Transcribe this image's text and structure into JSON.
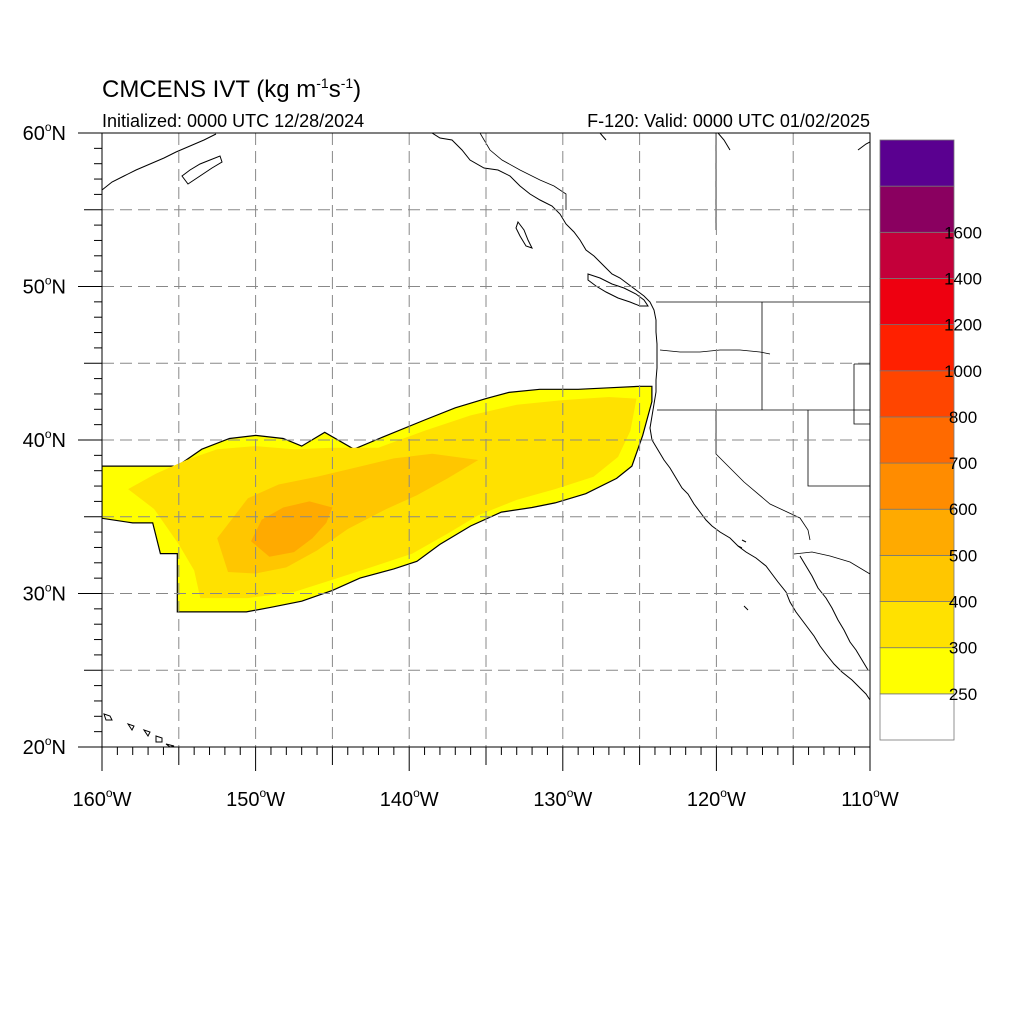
{
  "title": {
    "prefix": "CMCENS IVT (kg m",
    "exp1": "-1",
    "mid": "s",
    "exp2": "-1",
    "suffix": ")"
  },
  "subtitle_left": "Initialized: 0000 UTC 12/28/2024",
  "subtitle_right": "F-120: Valid: 0000 UTC 01/02/2025",
  "map": {
    "lon_range": [
      -160,
      -110
    ],
    "lat_range": [
      20,
      60
    ],
    "grid_dashed": true,
    "lon_ticks": [
      {
        "value": -160,
        "label": "160",
        "hemi": "W"
      },
      {
        "value": -150,
        "label": "150",
        "hemi": "W"
      },
      {
        "value": -140,
        "label": "140",
        "hemi": "W"
      },
      {
        "value": -130,
        "label": "130",
        "hemi": "W"
      },
      {
        "value": -120,
        "label": "120",
        "hemi": "W"
      },
      {
        "value": -110,
        "label": "110",
        "hemi": "W"
      }
    ],
    "lat_ticks": [
      {
        "value": 20,
        "label": "20",
        "hemi": "N"
      },
      {
        "value": 30,
        "label": "30",
        "hemi": "N"
      },
      {
        "value": 40,
        "label": "40",
        "hemi": "N"
      },
      {
        "value": 50,
        "label": "50",
        "hemi": "N"
      },
      {
        "value": 60,
        "label": "60",
        "hemi": "N"
      }
    ],
    "degree_symbol": "o"
  },
  "colorbar": {
    "levels": [
      {
        "color": "#ffffff",
        "label": ""
      },
      {
        "color": "#ffff00",
        "label": "250"
      },
      {
        "color": "#ffe100",
        "label": "300"
      },
      {
        "color": "#ffc600",
        "label": "400"
      },
      {
        "color": "#ffaa00",
        "label": "500"
      },
      {
        "color": "#ff8c00",
        "label": "600"
      },
      {
        "color": "#ff6a00",
        "label": "700"
      },
      {
        "color": "#ff4500",
        "label": "800"
      },
      {
        "color": "#ff2000",
        "label": "1000"
      },
      {
        "color": "#ee0010",
        "label": "1200"
      },
      {
        "color": "#c4003a",
        "label": "1400"
      },
      {
        "color": "#8a0060",
        "label": "1600"
      },
      {
        "color": "#5a0090",
        "label": ""
      }
    ]
  },
  "ivt_field": {
    "units": "kg m-1 s-1",
    "regions": [
      {
        "level": 250,
        "color": "#ffff00",
        "outline": [
          [
            -160,
            38.3
          ],
          [
            -155.1,
            38.3
          ],
          [
            -153.5,
            39.4
          ],
          [
            -151.7,
            40.1
          ],
          [
            -150,
            40.3
          ],
          [
            -148.2,
            40.1
          ],
          [
            -147,
            39.6
          ],
          [
            -145.5,
            40.5
          ],
          [
            -143.6,
            39.4
          ],
          [
            -141.7,
            40.2
          ],
          [
            -139,
            41.3
          ],
          [
            -137,
            42.1
          ],
          [
            -135,
            42.7
          ],
          [
            -133.5,
            43.1
          ],
          [
            -131.5,
            43.3
          ],
          [
            -129,
            43.3
          ],
          [
            -127,
            43.4
          ],
          [
            -125,
            43.5
          ],
          [
            -124.2,
            43.5
          ],
          [
            -124.2,
            42.5
          ],
          [
            -124.8,
            40.3
          ],
          [
            -125.5,
            38.3
          ],
          [
            -126.5,
            37.5
          ],
          [
            -128.5,
            36.5
          ],
          [
            -130.5,
            35.9
          ],
          [
            -132,
            35.6
          ],
          [
            -134,
            35.3
          ],
          [
            -136,
            34.4
          ],
          [
            -138,
            33.2
          ],
          [
            -139.5,
            32.1
          ],
          [
            -141,
            31.6
          ],
          [
            -143.2,
            31.0
          ],
          [
            -145,
            30.2
          ],
          [
            -147,
            29.5
          ],
          [
            -149,
            29.1
          ],
          [
            -150.6,
            28.8
          ],
          [
            -153,
            28.8
          ],
          [
            -155.1,
            28.8
          ],
          [
            -155.1,
            30.0
          ],
          [
            -155.1,
            32.6
          ],
          [
            -156.2,
            32.6
          ],
          [
            -156.7,
            34.6
          ],
          [
            -158,
            34.6
          ],
          [
            -160,
            34.9
          ]
        ]
      },
      {
        "level": 300,
        "color": "#ffe100",
        "outline": [
          [
            -158.3,
            36.8
          ],
          [
            -156.5,
            37.8
          ],
          [
            -154.5,
            38.7
          ],
          [
            -152.5,
            39.4
          ],
          [
            -150,
            39.6
          ],
          [
            -147.5,
            39.4
          ],
          [
            -145,
            39.5
          ],
          [
            -142,
            39.5
          ],
          [
            -139,
            40.6
          ],
          [
            -136,
            41.6
          ],
          [
            -133,
            42.3
          ],
          [
            -130,
            42.6
          ],
          [
            -127,
            42.8
          ],
          [
            -125.2,
            42.7
          ],
          [
            -125.6,
            40.6
          ],
          [
            -126.4,
            38.9
          ],
          [
            -128,
            37.6
          ],
          [
            -130.5,
            36.8
          ],
          [
            -133,
            36.1
          ],
          [
            -135.5,
            35.1
          ],
          [
            -137.5,
            33.9
          ],
          [
            -139.8,
            32.6
          ],
          [
            -142.5,
            31.7
          ],
          [
            -145,
            30.9
          ],
          [
            -147.5,
            30.1
          ],
          [
            -150.5,
            29.7
          ],
          [
            -153.6,
            29.7
          ],
          [
            -154,
            31.5
          ],
          [
            -155,
            33.2
          ],
          [
            -156.6,
            35.5
          ]
        ]
      },
      {
        "level": 400,
        "color": "#ffc600",
        "outline": [
          [
            -152.5,
            33.6
          ],
          [
            -150.5,
            36.2
          ],
          [
            -148.5,
            37.1
          ],
          [
            -146,
            37.6
          ],
          [
            -143.5,
            38.2
          ],
          [
            -141,
            38.8
          ],
          [
            -138.5,
            39.1
          ],
          [
            -135.5,
            38.7
          ],
          [
            -137.5,
            37.5
          ],
          [
            -139.5,
            36.4
          ],
          [
            -141.5,
            35.5
          ],
          [
            -144,
            34.2
          ],
          [
            -146,
            32.8
          ],
          [
            -148,
            31.7
          ],
          [
            -150,
            31.3
          ],
          [
            -151.8,
            31.4
          ]
        ]
      },
      {
        "level": 500,
        "color": "#ffaa00",
        "outline": [
          [
            -150.3,
            33.4
          ],
          [
            -149.6,
            34.8
          ],
          [
            -148.2,
            35.6
          ],
          [
            -146.5,
            36.0
          ],
          [
            -145,
            35.6
          ],
          [
            -145.4,
            34.6
          ],
          [
            -146.3,
            33.6
          ],
          [
            -147.5,
            32.7
          ],
          [
            -149.1,
            32.4
          ]
        ]
      }
    ]
  }
}
